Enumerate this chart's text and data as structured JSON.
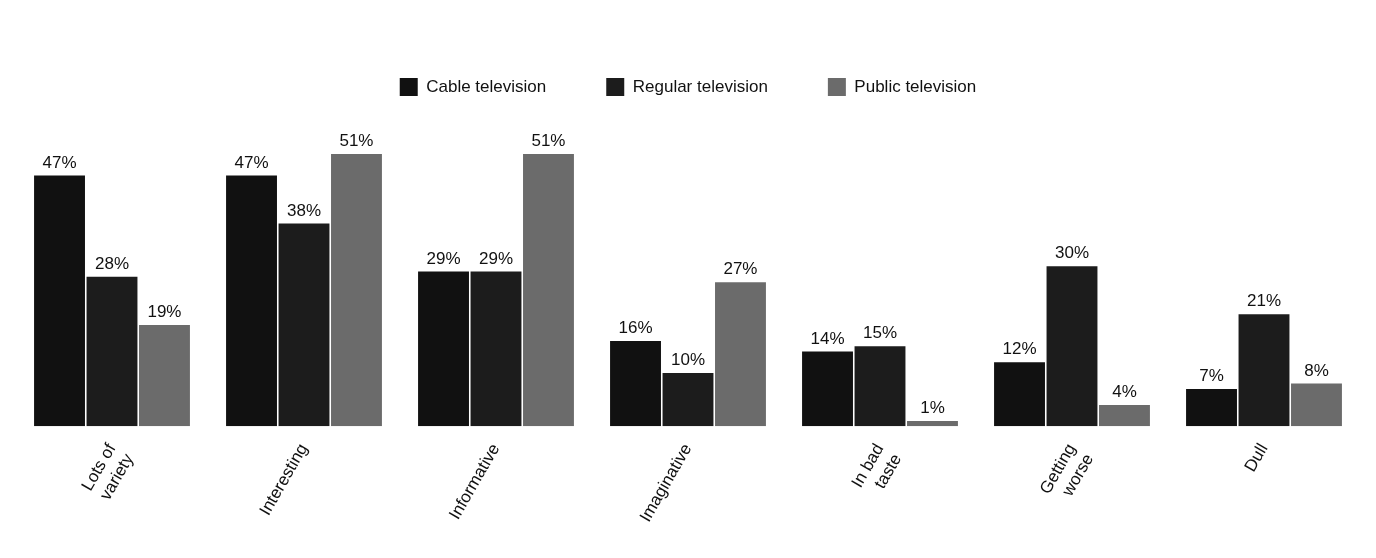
{
  "chart_data": {
    "type": "bar",
    "categories": [
      "Lots of\nvariety",
      "Interesting",
      "Informative",
      "Imaginative",
      "In bad\ntaste",
      "Getting\nworse",
      "Dull"
    ],
    "series": [
      {
        "name": "Cable television",
        "color": "#111111",
        "values": [
          47,
          47,
          29,
          16,
          14,
          12,
          7
        ],
        "value_labels": [
          "47%",
          "47%",
          "29%",
          "16%",
          "14%",
          "12%",
          "7%"
        ]
      },
      {
        "name": "Regular television",
        "color": "#1c1c1c",
        "values": [
          28,
          38,
          29,
          10,
          15,
          30,
          21
        ],
        "value_labels": [
          "28%",
          "38%",
          "29%",
          "10%",
          "15%",
          "30%",
          "21%"
        ]
      },
      {
        "name": "Public television",
        "color": "#6b6b6b",
        "values": [
          19,
          51,
          51,
          27,
          1,
          4,
          8
        ],
        "value_labels": [
          "19%",
          "51%",
          "51%",
          "27%",
          "1%",
          "4%",
          "8%"
        ]
      }
    ],
    "legend": "top",
    "grid": false
  }
}
